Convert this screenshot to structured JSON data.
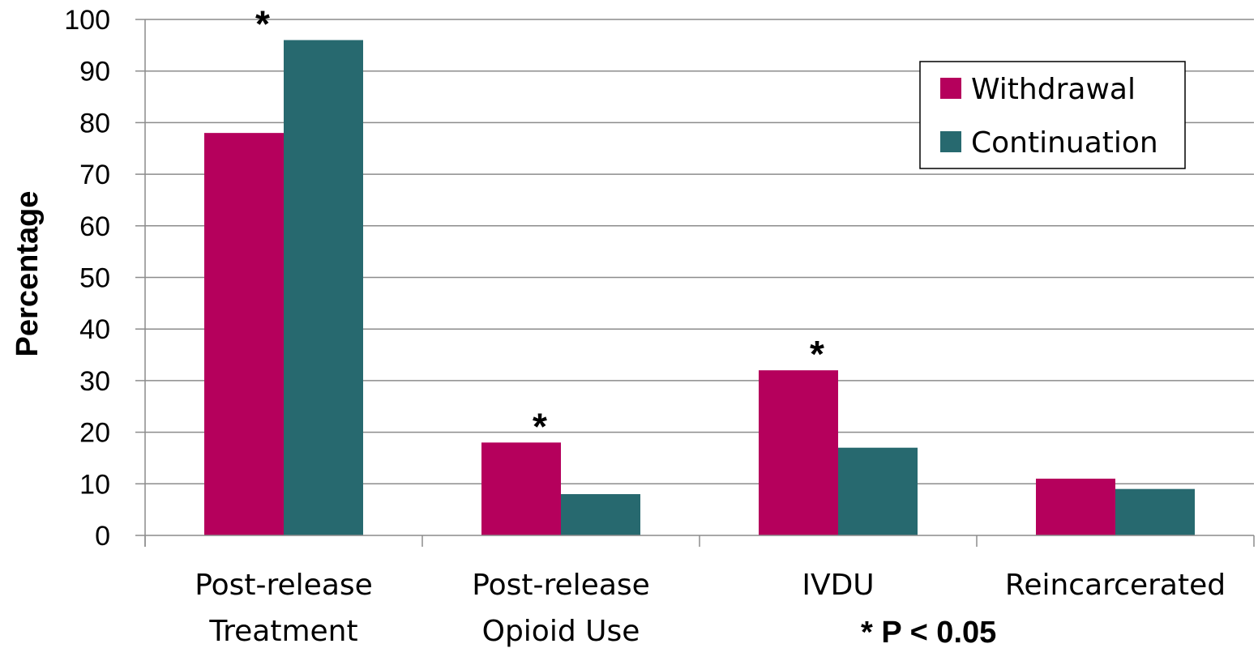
{
  "chart_data": {
    "type": "bar",
    "ylabel": "Percentage",
    "ylim": [
      0,
      100
    ],
    "yticks": [
      "0",
      "10",
      "20",
      "30",
      "40",
      "50",
      "60",
      "70",
      "80",
      "90",
      "100"
    ],
    "grid": true,
    "legend_position": "top-right",
    "categories": [
      [
        "Post-release",
        "Treatment"
      ],
      [
        "Post-release",
        "Opioid Use"
      ],
      [
        "IVDU"
      ],
      [
        "Reincarcerated"
      ]
    ],
    "series": [
      {
        "name": "Withdrawal",
        "color": "#b5005c",
        "values": [
          78,
          18,
          32,
          11
        ]
      },
      {
        "name": "Continuation",
        "color": "#27696f",
        "values": [
          96,
          8,
          17,
          9
        ]
      }
    ],
    "significance_markers": [
      {
        "category_index": 0,
        "text": "*"
      },
      {
        "category_index": 1,
        "text": "*"
      },
      {
        "category_index": 2,
        "text": "*"
      }
    ],
    "footnote": "* P < 0.05"
  }
}
